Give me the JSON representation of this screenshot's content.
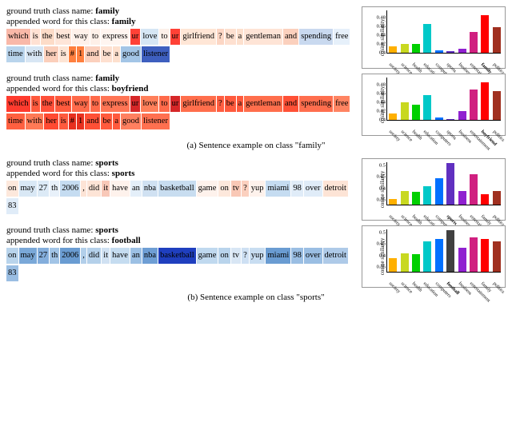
{
  "section_a": {
    "caption": "(a) Sentence example on class \"family\"",
    "examples": [
      {
        "gt_label": "ground truth class name:",
        "gt_value": "family",
        "ap_label": "appended word for this class:",
        "ap_value": "family",
        "tokens": [
          {
            "t": "which",
            "c": "#f9b8a8"
          },
          {
            "t": "is",
            "c": "#ffe1d3"
          },
          {
            "t": "the",
            "c": "#fddcc8"
          },
          {
            "t": "best",
            "c": "#fee5d8"
          },
          {
            "t": "way",
            "c": "#fff1ea"
          },
          {
            "t": "to",
            "c": "#fef0e8"
          },
          {
            "t": "express",
            "c": "#fff5f0"
          },
          {
            "t": "ur",
            "c": "#ff4136"
          },
          {
            "t": "love",
            "c": "#d6e6f4"
          },
          {
            "t": "to",
            "c": "#fcf0e9"
          },
          {
            "t": "ur",
            "c": "#ff4136"
          },
          {
            "t": "girlfriend",
            "c": "#ffe6d6"
          },
          {
            "t": "?",
            "c": "#fcd6c4"
          },
          {
            "t": "be",
            "c": "#fee0d0"
          },
          {
            "t": "a",
            "c": "#fde0ce"
          },
          {
            "t": "gentleman",
            "c": "#fee4d6"
          },
          {
            "t": "and",
            "c": "#fbd0bd"
          },
          {
            "t": "spending",
            "c": "#c9d9ef"
          },
          {
            "t": "free",
            "c": "#e6f0fa"
          },
          {
            "t": "time",
            "c": "#b9d4ec"
          },
          {
            "t": "with",
            "c": "#d8e6f4"
          },
          {
            "t": "her",
            "c": "#fbcfbb"
          },
          {
            "t": "is",
            "c": "#fde4d4"
          },
          {
            "t": "#",
            "c": "#ff7f3e"
          },
          {
            "t": "1",
            "c": "#ff7f3e"
          },
          {
            "t": "and",
            "c": "#fbd0bd"
          },
          {
            "t": "be",
            "c": "#fee0d0"
          },
          {
            "t": "a",
            "c": "#fde0ce"
          },
          {
            "t": "good",
            "c": "#a3c5e6"
          },
          {
            "t": "listener",
            "c": "#3e5fbf"
          }
        ],
        "chart": {
          "ylabel": "cosine similarity",
          "ymin": 0.4,
          "ymax": 0.5,
          "yticks": [
            0.4,
            0.42,
            0.44,
            0.46,
            0.48
          ],
          "cats": [
            "society",
            "science",
            "health",
            "education",
            "computers",
            "sports",
            "business",
            "entertainment",
            "family",
            "politics"
          ],
          "bold_idx": 8,
          "colors": [
            "#ffb000",
            "#c8d820",
            "#00d000",
            "#00c8c8",
            "#0070ff",
            "#6030c0",
            "#9020d0",
            "#d02080",
            "#ff0000",
            "#a03020"
          ],
          "vals": [
            0.415,
            0.42,
            0.42,
            0.465,
            0.405,
            0.403,
            0.41,
            0.448,
            0.485,
            0.458
          ]
        }
      },
      {
        "gt_label": "ground truth class name:",
        "gt_value": "family",
        "ap_label": "appended word for this class:",
        "ap_value": "boyfriend",
        "tokens": [
          {
            "t": "which",
            "c": "#ff3b2e"
          },
          {
            "t": "is",
            "c": "#ff5a3d"
          },
          {
            "t": "the",
            "c": "#ff503a"
          },
          {
            "t": "best",
            "c": "#ff5a3d"
          },
          {
            "t": "way",
            "c": "#ff6a4a"
          },
          {
            "t": "to",
            "c": "#ff6a4a"
          },
          {
            "t": "express",
            "c": "#ff7555"
          },
          {
            "t": "ur",
            "c": "#d62728"
          },
          {
            "t": "love",
            "c": "#ff7f5a"
          },
          {
            "t": "to",
            "c": "#ff6a4a"
          },
          {
            "t": "ur",
            "c": "#d62728"
          },
          {
            "t": "girlfriend",
            "c": "#ff6e4c"
          },
          {
            "t": "?",
            "c": "#ff5e42"
          },
          {
            "t": "be",
            "c": "#ff5a3d"
          },
          {
            "t": "a",
            "c": "#ff5a3d"
          },
          {
            "t": "gentleman",
            "c": "#ff6e4c"
          },
          {
            "t": "and",
            "c": "#ff5036"
          },
          {
            "t": "spending",
            "c": "#ff6e4e"
          },
          {
            "t": "free",
            "c": "#ff8462"
          },
          {
            "t": "time",
            "c": "#ff6040"
          },
          {
            "t": "with",
            "c": "#ff7a56"
          },
          {
            "t": "her",
            "c": "#ff4a32"
          },
          {
            "t": "is",
            "c": "#ff5a3d"
          },
          {
            "t": "#",
            "c": "#e8301f"
          },
          {
            "t": "1",
            "c": "#e8301f"
          },
          {
            "t": "and",
            "c": "#ff5036"
          },
          {
            "t": "be",
            "c": "#ff5a3d"
          },
          {
            "t": "a",
            "c": "#ff5a3d"
          },
          {
            "t": "good",
            "c": "#ff8060"
          },
          {
            "t": "listener",
            "c": "#ff7050"
          }
        ],
        "chart": {
          "ylabel": "cosine similarity",
          "ymin": 0.4,
          "ymax": 0.5,
          "yticks": [
            0.4,
            0.42,
            0.44,
            0.46,
            0.48
          ],
          "cats": [
            "society",
            "science",
            "health",
            "education",
            "computers",
            "sports",
            "business",
            "entertainment",
            "boyfriend",
            "politics"
          ],
          "bold_idx": 8,
          "colors": [
            "#ffb000",
            "#c8d820",
            "#00d000",
            "#00c8c8",
            "#0070ff",
            "#6030c0",
            "#9020d0",
            "#d02080",
            "#ff0000",
            "#a03020"
          ],
          "vals": [
            0.415,
            0.44,
            0.435,
            0.456,
            0.405,
            0.402,
            0.42,
            0.47,
            0.485,
            0.465
          ]
        }
      }
    ]
  },
  "section_b": {
    "caption": "(b) Sentence example on class \"sports\"",
    "examples": [
      {
        "gt_label": "ground truth class name:",
        "gt_value": "sports",
        "ap_label": "appended word for this class:",
        "ap_value": "sports",
        "tokens": [
          {
            "t": "on",
            "c": "#fde8dc"
          },
          {
            "t": "may",
            "c": "#d9e8f5"
          },
          {
            "t": "27",
            "c": "#dceaf6"
          },
          {
            "t": "th",
            "c": "#e8f1fa"
          },
          {
            "t": "2006",
            "c": "#c5dcf1"
          },
          {
            "t": ",",
            "c": "#fde4d6"
          },
          {
            "t": "did",
            "c": "#fde4d6"
          },
          {
            "t": "it",
            "c": "#f8c8b8"
          },
          {
            "t": "have",
            "c": "#fef2ec"
          },
          {
            "t": "an",
            "c": "#e4eff9"
          },
          {
            "t": "nba",
            "c": "#d0e1f2"
          },
          {
            "t": "basketball",
            "c": "#c8ddf0"
          },
          {
            "t": "game",
            "c": "#fef2ec"
          },
          {
            "t": "on",
            "c": "#fde8dc"
          },
          {
            "t": "tv",
            "c": "#f9c8b6"
          },
          {
            "t": "?",
            "c": "#fbd0bf"
          },
          {
            "t": "yup",
            "c": "#fef2ec"
          },
          {
            "t": "miami",
            "c": "#c5dcf1"
          },
          {
            "t": "98",
            "c": "#e0ecf8"
          },
          {
            "t": "over",
            "c": "#e0ecf8"
          },
          {
            "t": "detroit",
            "c": "#fde4d6"
          },
          {
            "t": "83",
            "c": "#e0ecf8"
          }
        ],
        "chart": {
          "ylabel": "cosine similarity",
          "ymin": 0.33,
          "ymax": 0.52,
          "yticks": [
            0.35,
            0.4,
            0.45,
            0.5
          ],
          "cats": [
            "society",
            "science",
            "health",
            "education",
            "computers",
            "sports",
            "business",
            "entertainment",
            "family",
            "politics"
          ],
          "bold_idx": 5,
          "colors": [
            "#ffb000",
            "#c8d820",
            "#00d000",
            "#00c8c8",
            "#0070ff",
            "#6030c0",
            "#9020d0",
            "#d02080",
            "#ff0000",
            "#a03020"
          ],
          "vals": [
            0.355,
            0.39,
            0.385,
            0.41,
            0.445,
            0.51,
            0.39,
            0.46,
            0.375,
            0.39
          ]
        }
      },
      {
        "gt_label": "ground truth class name:",
        "gt_value": "sports",
        "ap_label": "appended word for this class:",
        "ap_value": "football",
        "tokens": [
          {
            "t": "on",
            "c": "#b9d4ec"
          },
          {
            "t": "may",
            "c": "#7aa8d8"
          },
          {
            "t": "27",
            "c": "#84aedc"
          },
          {
            "t": "th",
            "c": "#a2c4e6"
          },
          {
            "t": "2006",
            "c": "#6a9cd2"
          },
          {
            "t": ",",
            "c": "#b2cfea"
          },
          {
            "t": "did",
            "c": "#b4d0ea"
          },
          {
            "t": "it",
            "c": "#d0e1f2"
          },
          {
            "t": "have",
            "c": "#c5dcf0"
          },
          {
            "t": "an",
            "c": "#9cc0e4"
          },
          {
            "t": "nba",
            "c": "#6e9ed4"
          },
          {
            "t": "basketball",
            "c": "#1f3fbf"
          },
          {
            "t": "game",
            "c": "#c0d9ef"
          },
          {
            "t": "on",
            "c": "#b9d4ec"
          },
          {
            "t": "tv",
            "c": "#d8e6f4"
          },
          {
            "t": "?",
            "c": "#cee0f3"
          },
          {
            "t": "yup",
            "c": "#c8ddf1"
          },
          {
            "t": "miami",
            "c": "#6a9cd2"
          },
          {
            "t": "98",
            "c": "#9abee3"
          },
          {
            "t": "over",
            "c": "#9abee3"
          },
          {
            "t": "detroit",
            "c": "#aecae8"
          },
          {
            "t": "83",
            "c": "#9abee3"
          }
        ],
        "chart": {
          "ylabel": "cosine similarity",
          "ymin": 0.33,
          "ymax": 0.52,
          "yticks": [
            0.35,
            0.4,
            0.45,
            0.5
          ],
          "cats": [
            "society",
            "science",
            "health",
            "education",
            "computers",
            "football",
            "business",
            "entertainment",
            "family",
            "politics"
          ],
          "bold_idx": 5,
          "colors": [
            "#ffb000",
            "#c8d820",
            "#00d000",
            "#00c8c8",
            "#0070ff",
            "#404040",
            "#9020d0",
            "#d02080",
            "#ff0000",
            "#a03020"
          ],
          "vals": [
            0.39,
            0.41,
            0.405,
            0.46,
            0.47,
            0.51,
            0.435,
            0.48,
            0.47,
            0.46
          ]
        }
      }
    ]
  }
}
